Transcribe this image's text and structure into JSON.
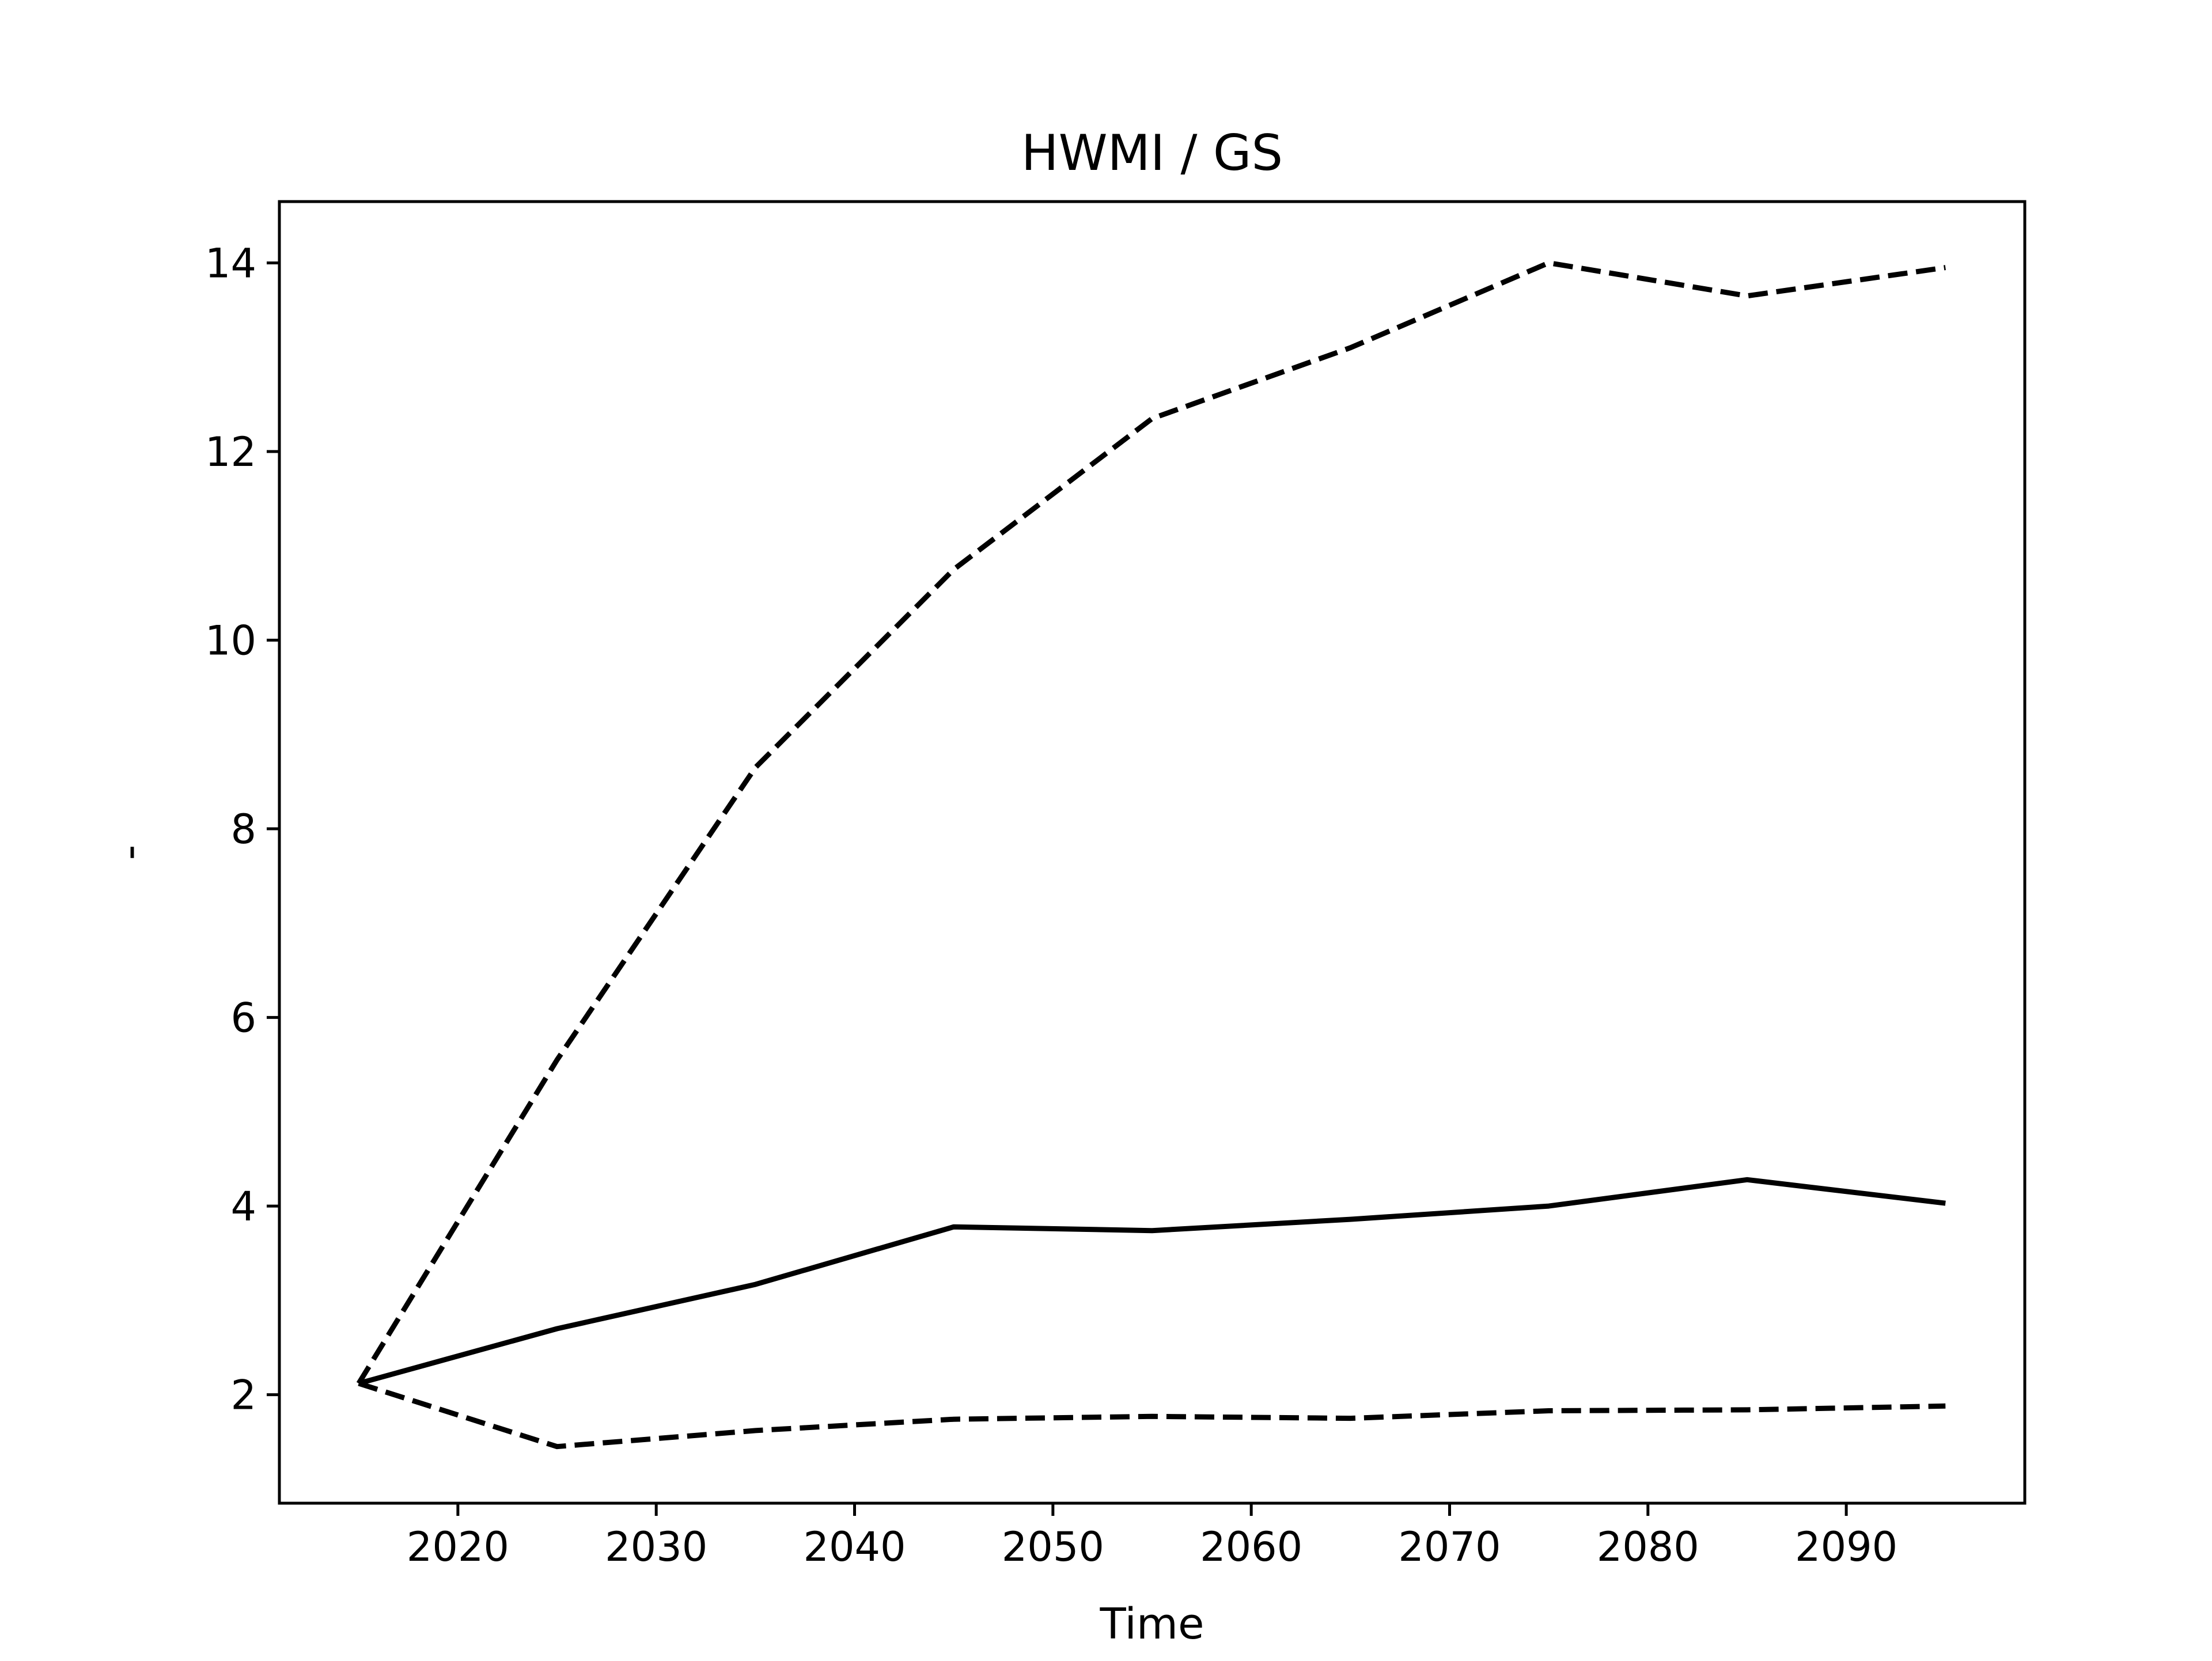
{
  "chart_data": {
    "type": "line",
    "title": "HWMI / GS",
    "xlabel": "Time",
    "ylabel": "-",
    "xlim": [
      2011,
      2099
    ],
    "ylim": [
      0.85,
      14.65
    ],
    "xticks": [
      2020,
      2030,
      2040,
      2050,
      2060,
      2070,
      2080,
      2090
    ],
    "yticks": [
      2,
      4,
      6,
      8,
      10,
      12,
      14
    ],
    "grid": false,
    "legend": "none",
    "x": [
      2015,
      2025,
      2035,
      2045,
      2055,
      2065,
      2075,
      2085,
      2095
    ],
    "series": [
      {
        "style": "dashed",
        "color": "#000000",
        "values": [
          2.12,
          5.55,
          8.65,
          10.75,
          12.35,
          13.1,
          14.0,
          13.65,
          13.95
        ]
      },
      {
        "style": "solid",
        "color": "#000000",
        "values": [
          2.12,
          2.7,
          3.17,
          3.78,
          3.74,
          3.86,
          4.0,
          4.28,
          4.03
        ]
      },
      {
        "style": "dashed",
        "color": "#000000",
        "values": [
          2.12,
          1.45,
          1.62,
          1.74,
          1.77,
          1.75,
          1.83,
          1.84,
          1.88
        ]
      }
    ]
  }
}
